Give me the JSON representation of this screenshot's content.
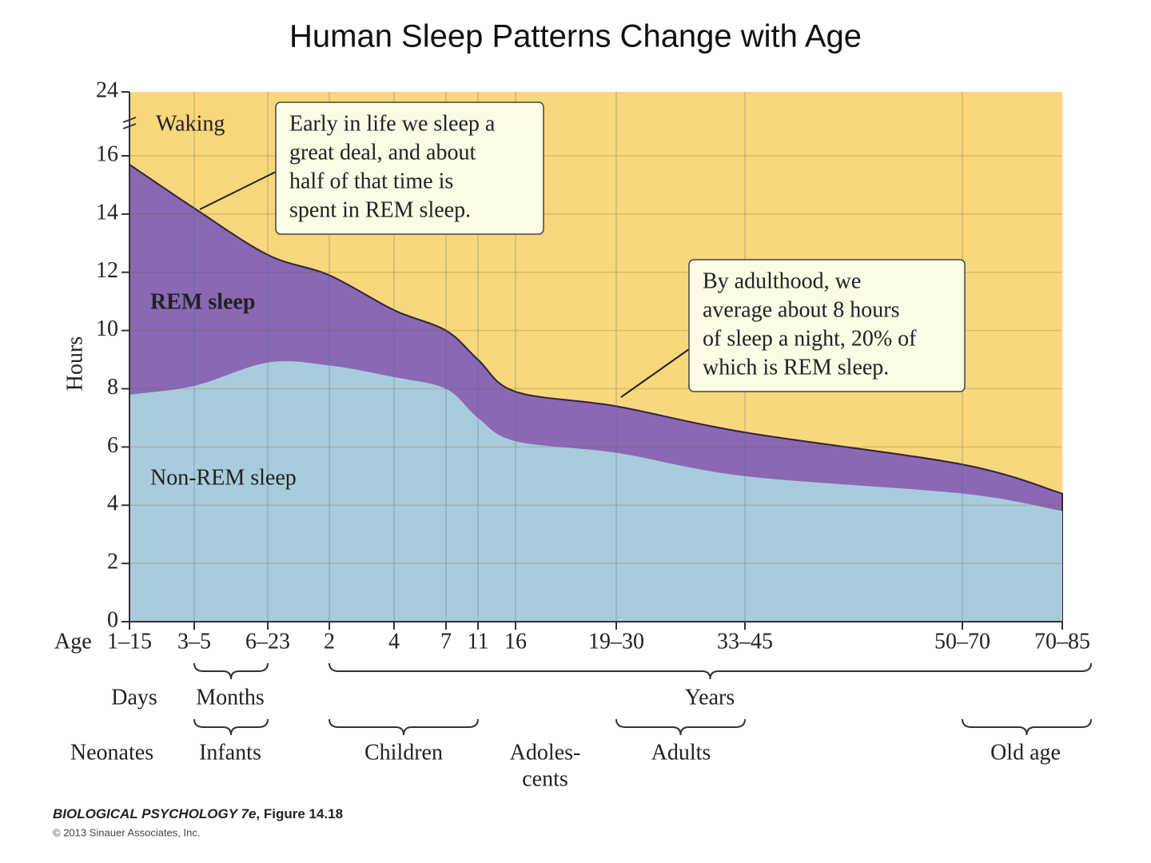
{
  "chart_data": {
    "type": "area",
    "stacked": true,
    "title": "Human Sleep Patterns Change with Age",
    "y_label": "Hours",
    "x_label": "Age",
    "categories": [
      "1–15",
      "3–5",
      "6–23",
      "2",
      "4",
      "7",
      "11",
      "16",
      "19–30",
      "33–45",
      "50–70",
      "70–85"
    ],
    "series": [
      {
        "name": "Non-REM sleep",
        "color": "#a9ccdd",
        "values": [
          7.8,
          8.1,
          8.9,
          8.8,
          8.4,
          8.0,
          7.0,
          6.2,
          5.8,
          5.0,
          4.4,
          3.8
        ]
      },
      {
        "name": "REM sleep",
        "color": "#8a68b3",
        "values": [
          7.9,
          6.1,
          3.7,
          3.1,
          2.3,
          2.0,
          2.0,
          1.7,
          1.6,
          1.5,
          1.0,
          0.6
        ]
      },
      {
        "name": "Waking",
        "color": "#f9d77c",
        "values": [
          8.3,
          9.8,
          11.4,
          12.1,
          13.3,
          14.0,
          15.0,
          16.1,
          16.6,
          17.5,
          18.6,
          19.6
        ]
      }
    ],
    "ylim": [
      0,
      24
    ],
    "yticks": [
      0,
      2,
      4,
      6,
      8,
      10,
      12,
      14,
      16,
      24
    ],
    "axis_break": true,
    "grid": true,
    "annotations": [
      {
        "lines": [
          "Early in life we sleep a",
          "great deal, and about",
          "half of that time is",
          "spent in REM sleep."
        ]
      },
      {
        "lines": [
          "By adulthood, we",
          "average about 8 hours",
          "of sleep a night, 20% of",
          "which is REM sleep."
        ]
      }
    ],
    "age_units": [
      "Days",
      "Months",
      "Years"
    ],
    "life_stages": [
      [
        "Neonates"
      ],
      [
        "Infants"
      ],
      [
        "Children"
      ],
      [
        "Adoles-",
        "cents"
      ],
      [
        "Adults"
      ],
      [
        "Old age"
      ]
    ]
  },
  "footer": {
    "book": "BIOLOGICAL PSYCHOLOGY 7e",
    "figure": ", Figure 14.18",
    "copyright": "© 2013 Sinauer Associates, Inc."
  }
}
